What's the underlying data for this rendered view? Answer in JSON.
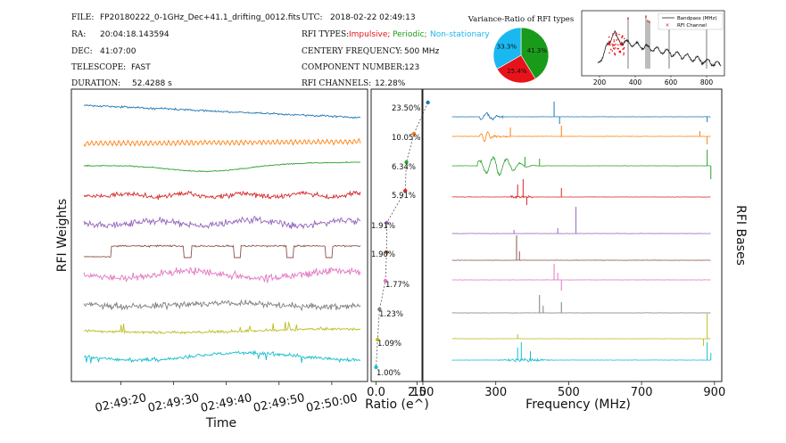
{
  "header": {
    "file_label": "FILE:",
    "file_value": "FP20180222_0-1GHz_Dec+41.1_drifting_0012.fits",
    "ra_label": "RA:",
    "ra_value": "20:04:18.143594",
    "dec_label": "DEC:",
    "dec_value": "41:07:00",
    "telescope_label": "TELESCOPE:",
    "telescope_value": "FAST",
    "duration_label": "DURATION:",
    "duration_value": "52.4288 s",
    "utc_label": "UTC:",
    "utc_value": "2018-02-22 02:49:13",
    "rfi_types_label": "RFI TYPES:",
    "rfi_type_impulsive": "Impulsive;",
    "rfi_type_periodic": "Periodic;",
    "rfi_type_nonstationary": "Non-stationary",
    "center_freq_label": "CENTERY FREQUENCY:",
    "center_freq_value": "500 MHz",
    "component_label": "COMPONENT NUMBER:",
    "component_value": "123",
    "rfi_channels_label": "RFI CHANNELS:",
    "rfi_channels_value": "12.28%"
  },
  "colors": {
    "impulsive": "#e8131a",
    "periodic": "#1a9a1a",
    "nonstationary": "#1ab8f0",
    "series": [
      "#1f77b4",
      "#ff7f0e",
      "#2ca02c",
      "#d62728",
      "#9467bd",
      "#8c564b",
      "#e377c2",
      "#7f7f7f",
      "#bcbd22",
      "#17becf"
    ]
  },
  "chart_data": [
    {
      "type": "pie",
      "title": "Variance-Ratio of RFI types",
      "labels": [
        "Periodic",
        "Impulsive",
        "Non-stationary"
      ],
      "values": [
        41.3,
        25.4,
        33.3
      ],
      "value_labels": [
        "41.3%",
        "25.4%",
        "33.3%"
      ]
    },
    {
      "type": "line",
      "title": "",
      "legend": [
        "Bandpass (MHz)",
        "RFI Channel"
      ],
      "legend_position": "top-right",
      "x_ticks": [
        "200",
        "400",
        "600",
        "800"
      ],
      "x_tick_values": [
        200,
        400,
        600,
        800
      ],
      "xlim": [
        100,
        900
      ]
    },
    {
      "type": "line",
      "xlabel": "Time",
      "ylabel": "RFI Weights",
      "x_ticks": [
        "02:49:20",
        "02:49:30",
        "02:49:40",
        "02:49:50",
        "02:50:00"
      ],
      "x_tick_seconds": [
        7,
        17,
        27,
        37,
        47
      ],
      "xlim": [
        0,
        52.4288
      ],
      "series_count": 10
    },
    {
      "type": "scatter",
      "xlabel": "Ratio (e^)",
      "x_ticks": [
        "0.0",
        "2.5"
      ],
      "x_tick_values": [
        0.0,
        2.5
      ],
      "xlim": [
        -0.3,
        2.8
      ],
      "ratios": [
        23.5,
        10.05,
        6.34,
        5.91,
        1.91,
        1.9,
        1.77,
        1.23,
        1.09,
        1.0
      ],
      "ratio_labels": [
        "23.50%",
        "10.05%",
        "6.34%",
        "5.91%",
        "1.91%",
        "1.90%",
        "1.77%",
        "1.23%",
        "1.09%",
        "1.00%"
      ],
      "log_values": [
        3.16,
        2.31,
        1.85,
        1.78,
        0.65,
        0.64,
        0.57,
        0.21,
        0.09,
        0.0
      ]
    },
    {
      "type": "line",
      "xlabel": "Frequency (MHz)",
      "ylabel": "RFI Bases",
      "x_ticks": [
        "100",
        "300",
        "500",
        "700",
        "900"
      ],
      "x_tick_values": [
        100,
        300,
        500,
        700,
        900
      ],
      "xlim": [
        100,
        920
      ],
      "series_count": 10
    }
  ]
}
